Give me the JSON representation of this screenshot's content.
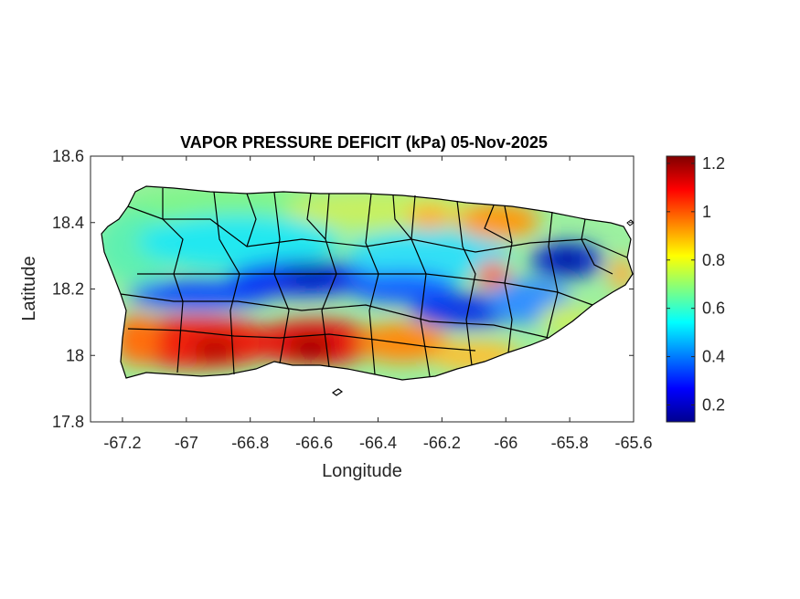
{
  "title": "VAPOR PRESSURE DEFICIT (kPa) 05-Nov-2025",
  "x_axis": {
    "label": "Longitude",
    "range": [
      -67.3,
      -65.6
    ],
    "ticks": [
      -67.2,
      -67,
      -66.8,
      -66.6,
      -66.4,
      -66.2,
      -66,
      -65.8,
      -65.6
    ],
    "tick_labels": [
      "-67.2",
      "-67",
      "-66.8",
      "-66.6",
      "-66.4",
      "-66.2",
      "-66",
      "-65.8",
      "-65.6"
    ]
  },
  "y_axis": {
    "label": "Latitude",
    "range": [
      17.8,
      18.6
    ],
    "ticks": [
      18.6,
      18.4,
      18.2,
      18,
      17.8
    ],
    "tick_labels": [
      "18.6",
      "18.4",
      "18.2",
      "18",
      "17.8"
    ]
  },
  "colorbar": {
    "range": [
      0.13,
      1.23
    ],
    "ticks": [
      1.2,
      1,
      0.8,
      0.6,
      0.4,
      0.2
    ],
    "tick_labels": [
      "1.2",
      "1",
      "0.8",
      "0.6",
      "0.4",
      "0.2"
    ],
    "colormap": "jet"
  },
  "map_content": {
    "region": "Puerto Rico",
    "variable": "Vapor pressure deficit (kPa)",
    "boundaries": "municipality",
    "features": [
      {
        "name": "south coast high band",
        "lon": [
          -67.2,
          -66.2
        ],
        "lat": [
          17.93,
          18.1
        ],
        "value": 1.1
      },
      {
        "name": "central low band",
        "lon": [
          -66.9,
          -66.0
        ],
        "lat": [
          18.12,
          18.25
        ],
        "value": 0.25
      },
      {
        "name": "northeast low core",
        "lon": [
          -65.78
        ],
        "lat": [
          18.29
        ],
        "value": 0.15
      },
      {
        "name": "northeast high patch",
        "lon": [
          -66.1,
          -65.95
        ],
        "lat": [
          18.36,
          18.42
        ],
        "value": 0.95
      },
      {
        "name": "west coast moderate",
        "lon": [
          -67.25,
          -67.0
        ],
        "lat": [
          18.2,
          18.4
        ],
        "value": 0.65
      }
    ]
  }
}
